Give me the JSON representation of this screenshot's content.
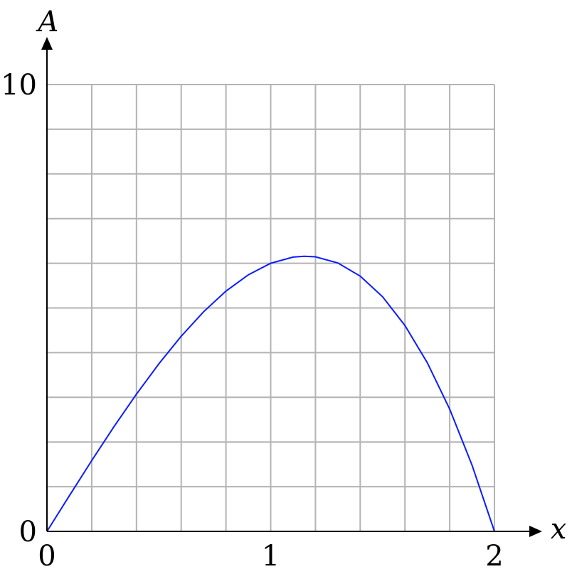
{
  "chart_data": {
    "type": "line",
    "xlabel": "x",
    "ylabel": "A",
    "xlim": [
      0,
      2
    ],
    "ylim": [
      0,
      10
    ],
    "x_ticks": [
      {
        "value": 0,
        "label": "0"
      },
      {
        "value": 1,
        "label": "1"
      },
      {
        "value": 2,
        "label": "2"
      }
    ],
    "y_ticks": [
      {
        "value": 0,
        "label": "0"
      },
      {
        "value": 10,
        "label": "10"
      }
    ],
    "grid": true,
    "grid_x_step": 0.2,
    "grid_y_step": 1,
    "colors": {
      "series": "#0a1cff",
      "grid": "#b3b3b3",
      "axis": "#000000"
    },
    "series": [
      {
        "x": [
          0,
          0.1,
          0.2,
          0.3,
          0.4,
          0.5,
          0.6,
          0.7,
          0.8,
          0.9,
          1.0,
          1.1,
          1.15,
          1.2,
          1.3,
          1.4,
          1.5,
          1.6,
          1.7,
          1.8,
          1.9,
          2.0
        ],
        "y": [
          0,
          0.798,
          1.584,
          2.346,
          3.072,
          3.75,
          4.368,
          4.914,
          5.376,
          5.742,
          6.0,
          6.138,
          6.158,
          6.144,
          6.006,
          5.712,
          5.25,
          4.608,
          3.774,
          2.736,
          1.482,
          0
        ]
      }
    ]
  }
}
